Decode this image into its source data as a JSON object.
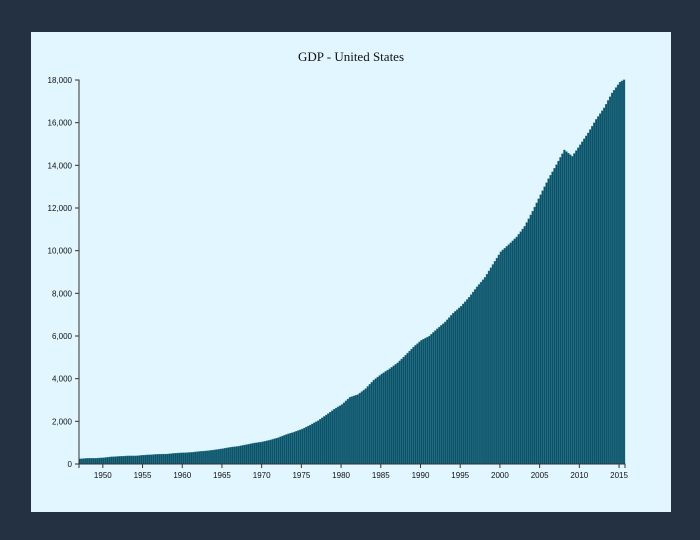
{
  "chart_data": {
    "type": "bar",
    "title": "GDP - United States",
    "xlabel": "",
    "ylabel": "",
    "ylim": [
      0,
      18000
    ],
    "xlim": [
      1947,
      2015.75
    ],
    "grid": false,
    "frequency": "quarterly",
    "bar_color": "#0b5268",
    "yticks": [
      "0",
      "2,000",
      "4,000",
      "6,000",
      "8,000",
      "10,000",
      "12,000",
      "14,000",
      "16,000",
      "18,000"
    ],
    "xticks": [
      "1950",
      "1955",
      "1960",
      "1965",
      "1970",
      "1975",
      "1980",
      "1985",
      "1990",
      "1995",
      "2000",
      "2005",
      "2010",
      "2015"
    ],
    "annual_values": {
      "years": [
        1947,
        1948,
        1949,
        1950,
        1951,
        1952,
        1953,
        1954,
        1955,
        1956,
        1957,
        1958,
        1959,
        1960,
        1961,
        1962,
        1963,
        1964,
        1965,
        1966,
        1967,
        1968,
        1969,
        1970,
        1971,
        1972,
        1973,
        1974,
        1975,
        1976,
        1977,
        1978,
        1979,
        1980,
        1981,
        1982,
        1983,
        1984,
        1985,
        1986,
        1987,
        1988,
        1989,
        1990,
        1991,
        1992,
        1993,
        1994,
        1995,
        1996,
        1997,
        1998,
        1999,
        2000,
        2001,
        2002,
        2003,
        2004,
        2005,
        2006,
        2007,
        2008,
        2009,
        2010,
        2011,
        2012,
        2013,
        2014,
        2015,
        2015.75
      ],
      "values": [
        243,
        269,
        272,
        293,
        339,
        358,
        379,
        380,
        414,
        437,
        461,
        467,
        506,
        526,
        545,
        586,
        617,
        664,
        720,
        788,
        832,
        910,
        984,
        1039,
        1127,
        1238,
        1383,
        1500,
        1638,
        1825,
        2031,
        2295,
        2566,
        2789,
        3129,
        3255,
        3537,
        3933,
        4220,
        4463,
        4740,
        5104,
        5484,
        5803,
        5996,
        6338,
        6657,
        7072,
        7398,
        7817,
        8305,
        8748,
        9353,
        9952,
        10286,
        10642,
        11142,
        11853,
        12623,
        13377,
        14029,
        14719,
        14420,
        14964,
        15518,
        16155,
        16692,
        17393,
        17900,
        18064
      ]
    }
  },
  "window": {
    "background": "#233142",
    "panel": "#e1f6fe"
  }
}
